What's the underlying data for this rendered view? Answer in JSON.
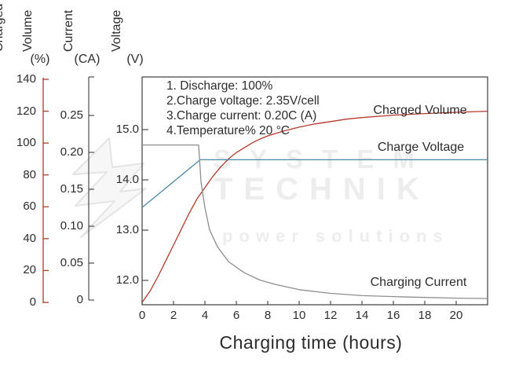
{
  "header": {
    "volume_title_1": "Charged",
    "volume_title_2": "Volume",
    "volume_unit": "(%)",
    "current_title": "Current",
    "current_unit": "(CA)",
    "voltage_title": "Voltage",
    "voltage_unit": "(V)"
  },
  "annotations": {
    "line1": "1. Discharge: 100%",
    "line2": "2.Charge voltage: 2.35V/cell",
    "line3": "3.Charge current: 0.20C (A)",
    "line4": "4.Temperature% 20 °C"
  },
  "curve_labels": {
    "charged_volume": "Charged Volume",
    "charge_voltage": "Charge Voltage",
    "charging_current": "Charging Current"
  },
  "x_axis_title": "Charging time (hours)",
  "watermark": {
    "line1": "SYSTEM",
    "line2": "TECHNIK",
    "line3": "power solutions"
  },
  "colors": {
    "charged_volume": "#b5392c",
    "charge_voltage": "#4b87a6",
    "charging_current": "#8e8e8e",
    "volume_axis": "#b5392c",
    "axis_dark": "#3d3d3d",
    "text": "#2d2d2d",
    "watermark": "#ededed"
  },
  "chart_data": {
    "type": "line",
    "title": "",
    "xlabel": "Charging time (hours)",
    "x_range": [
      0,
      22
    ],
    "x_tick_values": [
      0,
      2,
      4,
      6,
      8,
      10,
      12,
      14,
      16,
      18,
      20
    ],
    "x_tick_labels": [
      "0",
      "2",
      "4",
      "6",
      "8",
      "10",
      "12",
      "14",
      "16",
      "18",
      "20"
    ],
    "grid": false,
    "legend_position": "inline-labels",
    "axes": {
      "charged_volume": {
        "label": "Charged Volume (%)",
        "range": [
          0,
          140
        ],
        "tick_values": [
          0,
          20,
          40,
          60,
          80,
          100,
          120,
          140
        ],
        "tick_labels": [
          "0",
          "20",
          "40",
          "60",
          "80",
          "100",
          "120",
          "140"
        ]
      },
      "current": {
        "label": "Current (CA)",
        "range": [
          0,
          0.3
        ],
        "tick_values": [
          0,
          0.05,
          0.1,
          0.15,
          0.2,
          0.25
        ],
        "tick_labels": [
          "0",
          "0.05",
          "0.10",
          "0.15",
          "0.20",
          "0.25"
        ]
      },
      "voltage": {
        "label": "Voltage (V)",
        "range": [
          11.5,
          16.0
        ],
        "tick_values": [
          12.0,
          13.0,
          14.0,
          15.0
        ],
        "tick_labels": [
          "12.0",
          "13.0",
          "14.0",
          "15.0"
        ]
      }
    },
    "series": [
      {
        "name": "Charged Volume",
        "axis": "charged_volume",
        "x": [
          0,
          0.5,
          1,
          1.5,
          2,
          2.5,
          3,
          3.5,
          4,
          4.5,
          5,
          5.5,
          6,
          6.5,
          7,
          7.5,
          8,
          9,
          10,
          11,
          12,
          13,
          14,
          16,
          18,
          20,
          22
        ],
        "y": [
          0,
          7,
          16,
          26,
          36,
          46,
          56,
          65,
          72,
          79,
          85,
          90,
          94,
          97,
          100,
          102.5,
          104.5,
          107.5,
          110,
          112,
          113.5,
          115,
          116,
          117.5,
          118.5,
          119.3,
          120
        ]
      },
      {
        "name": "Charge Voltage",
        "axis": "voltage",
        "x": [
          0,
          3.7,
          22
        ],
        "y": [
          13.45,
          14.4,
          14.4
        ]
      },
      {
        "name": "Charging Current",
        "axis": "current",
        "x": [
          0,
          3.6,
          3.75,
          4,
          4.3,
          4.8,
          5.5,
          6.5,
          7.5,
          8.5,
          10,
          12,
          14,
          17,
          20,
          22
        ],
        "y": [
          0.21,
          0.21,
          0.16,
          0.125,
          0.095,
          0.072,
          0.052,
          0.037,
          0.027,
          0.021,
          0.014,
          0.009,
          0.006,
          0.004,
          0.0025,
          0.002
        ]
      }
    ],
    "annotations": [
      "1. Discharge: 100%",
      "2.Charge voltage: 2.35V/cell",
      "3.Charge current: 0.20C (A)",
      "4.Temperature% 20 °C"
    ]
  }
}
